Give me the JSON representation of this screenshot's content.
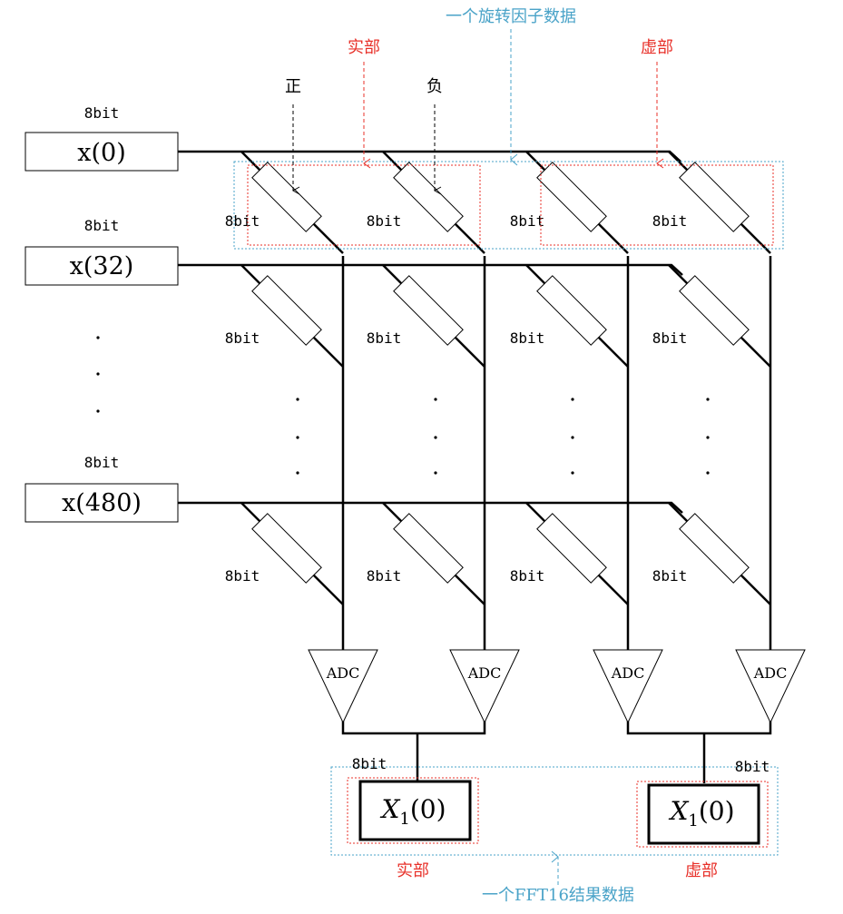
{
  "inputs": [
    {
      "label": "x(0)",
      "bits": "8bit"
    },
    {
      "label": "x(32)",
      "bits": "8bit"
    },
    {
      "label": "x(480)",
      "bits": "8bit"
    }
  ],
  "cell_bits": "8bit",
  "adc_label": "ADC",
  "annotations": {
    "twiddle": "一个旋转因子数据",
    "real_top": "实部",
    "imag_top": "虚部",
    "positive": "正",
    "negative": "负",
    "result": "一个FFT16结果数据",
    "real_bottom": "实部",
    "imag_bottom": "虚部"
  },
  "outputs": [
    {
      "base": "X",
      "sub": "1",
      "arg": "(0)",
      "bits": "8bit"
    },
    {
      "base": "X",
      "sub": "1",
      "arg": "(0)",
      "bits": "8bit"
    }
  ],
  "colors": {
    "line": "#000000",
    "accent_red": "#e8312a",
    "accent_cyan": "#4aa3c8"
  }
}
